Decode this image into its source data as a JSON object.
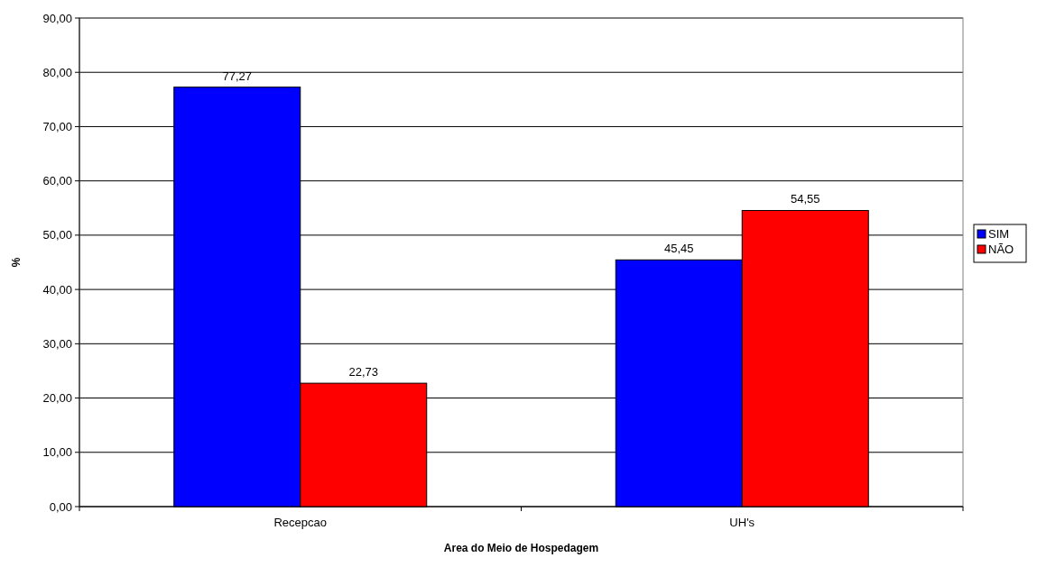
{
  "chart_data": {
    "type": "bar",
    "categories": [
      "Recepcao",
      "UH's"
    ],
    "series": [
      {
        "name": "SIM",
        "color": "#0000ff",
        "values": [
          77.27,
          45.45
        ],
        "value_labels": [
          "77,27",
          "45,45"
        ]
      },
      {
        "name": "NÃO",
        "color": "#ff0000",
        "values": [
          22.73,
          54.55
        ],
        "value_labels": [
          "22,73",
          "54,55"
        ]
      }
    ],
    "xlabel": "Area do Meio de Hospedagem",
    "ylabel": "%",
    "ylim": [
      0,
      90
    ],
    "yticks": [
      {
        "value": 0,
        "label": "0,00"
      },
      {
        "value": 10,
        "label": "10,00"
      },
      {
        "value": 20,
        "label": "20,00"
      },
      {
        "value": 30,
        "label": "30,00"
      },
      {
        "value": 40,
        "label": "40,00"
      },
      {
        "value": 50,
        "label": "50,00"
      },
      {
        "value": 60,
        "label": "60,00"
      },
      {
        "value": 70,
        "label": "70,00"
      },
      {
        "value": 80,
        "label": "80,00"
      },
      {
        "value": 90,
        "label": "90,00"
      }
    ],
    "grid": "y",
    "legend": "right"
  }
}
